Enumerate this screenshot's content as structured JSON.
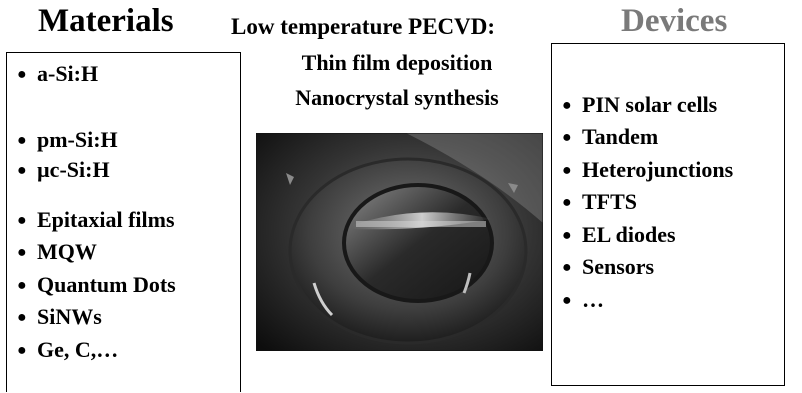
{
  "header": {
    "materials": "Materials",
    "pecvd": "Low temperature  PECVD:",
    "devices": "Devices"
  },
  "center": {
    "line1": "Thin film deposition",
    "line2": "Nanocrystal synthesis"
  },
  "bullet_glyph": "●",
  "materials": {
    "items": [
      "a-Si:H",
      "pm-Si:H",
      "µc-Si:H",
      "Epitaxial films",
      "MQW",
      "Quantum Dots",
      "SiNWs",
      "Ge, C,…"
    ]
  },
  "devices": {
    "items": [
      "PIN solar cells",
      "Tandem",
      "Heterojunctions",
      "TFTS",
      "EL diodes",
      "Sensors",
      "…"
    ]
  },
  "colors": {
    "text": "#000000",
    "devices_heading": "#7a7a7a",
    "background": "#ffffff"
  }
}
